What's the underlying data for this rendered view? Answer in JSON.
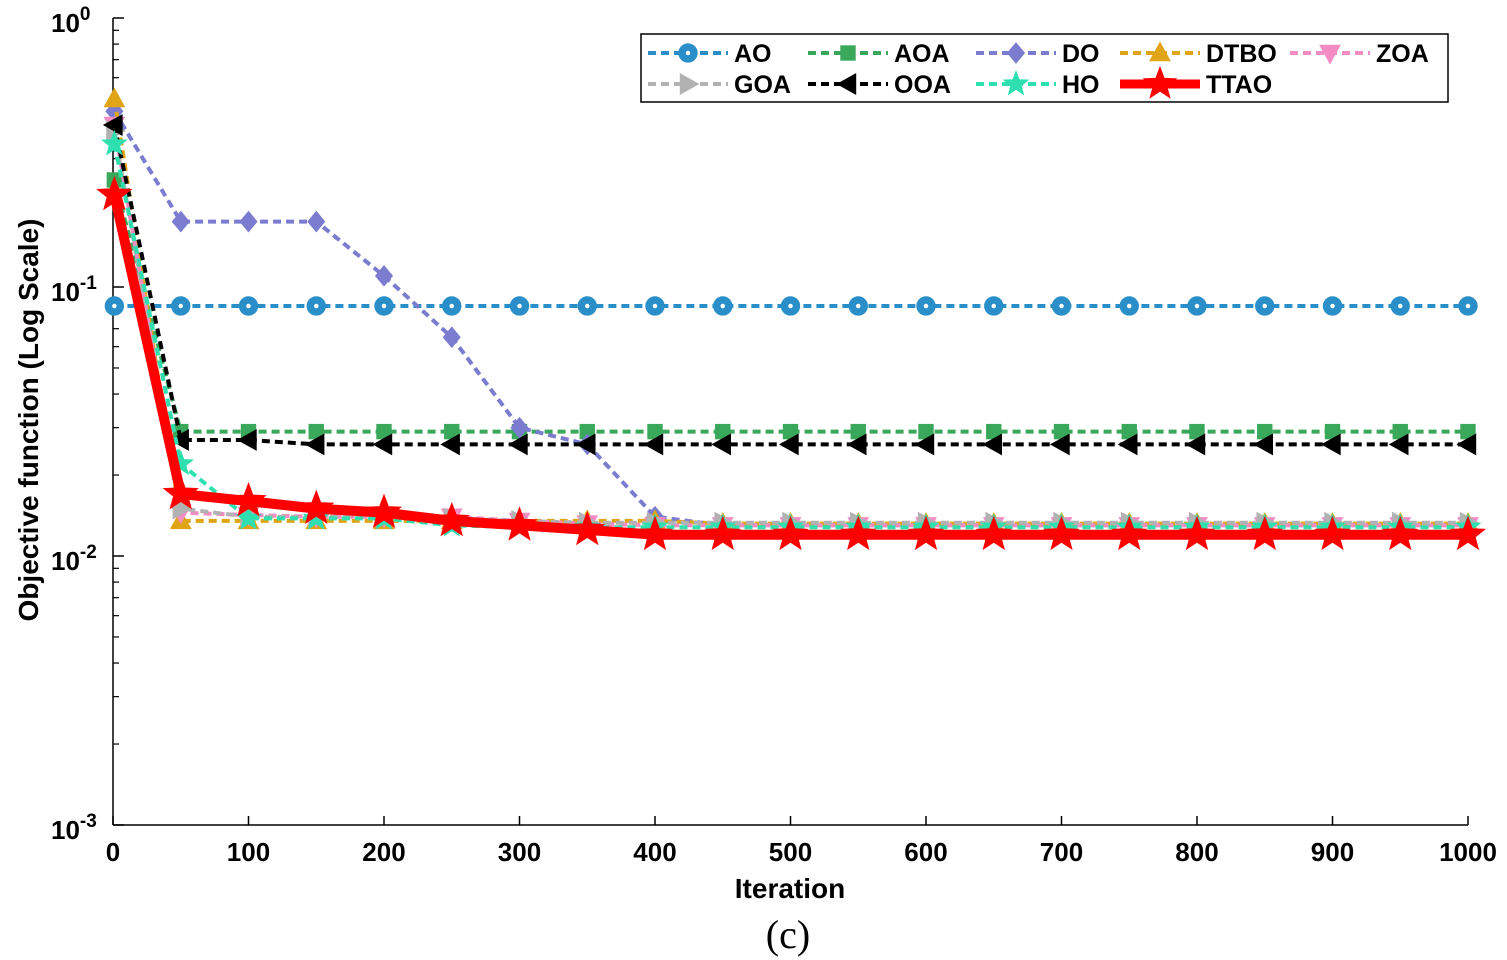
{
  "chart_data": {
    "type": "line",
    "title": "",
    "xlabel": "Iteration",
    "ylabel": "Objective function (Log Scale)",
    "caption": "(c)",
    "yscale": "log",
    "xlim": [
      0,
      1000
    ],
    "ylim": [
      0.001,
      1
    ],
    "xticks": [
      "0",
      "100",
      "200",
      "300",
      "400",
      "500",
      "600",
      "700",
      "800",
      "900",
      "1000"
    ],
    "yticks": [
      {
        "value": 1,
        "base": "10",
        "exp": "0"
      },
      {
        "value": 0.1,
        "base": "10",
        "exp": "-1"
      },
      {
        "value": 0.01,
        "base": "10",
        "exp": "-2"
      },
      {
        "value": 0.001,
        "base": "10",
        "exp": "-3"
      }
    ],
    "legend_position": "top-right",
    "x": [
      1,
      50,
      100,
      150,
      200,
      250,
      300,
      350,
      400,
      450,
      500,
      550,
      600,
      650,
      700,
      750,
      800,
      850,
      900,
      950,
      1000
    ],
    "series": [
      {
        "name": "AO",
        "color": "#2a8fc8",
        "marker": "circle",
        "dash": "dotted",
        "width": 4,
        "values": [
          0.085,
          0.085,
          0.085,
          0.085,
          0.085,
          0.085,
          0.085,
          0.085,
          0.085,
          0.085,
          0.085,
          0.085,
          0.085,
          0.085,
          0.085,
          0.085,
          0.085,
          0.085,
          0.085,
          0.085,
          0.085
        ]
      },
      {
        "name": "AOA",
        "color": "#3aa85a",
        "marker": "square",
        "dash": "dotted",
        "width": 4,
        "values": [
          0.25,
          0.029,
          0.029,
          0.029,
          0.029,
          0.029,
          0.029,
          0.029,
          0.029,
          0.029,
          0.029,
          0.029,
          0.029,
          0.029,
          0.029,
          0.029,
          0.029,
          0.029,
          0.029,
          0.029,
          0.029
        ]
      },
      {
        "name": "DO",
        "color": "#7b7ccf",
        "marker": "diamond",
        "dash": "dotted",
        "width": 4,
        "values": [
          0.45,
          0.175,
          0.175,
          0.175,
          0.11,
          0.065,
          0.03,
          0.026,
          0.014,
          0.013,
          0.013,
          0.013,
          0.013,
          0.013,
          0.013,
          0.013,
          0.013,
          0.013,
          0.013,
          0.013,
          0.013
        ]
      },
      {
        "name": "DTBO",
        "color": "#e0a516",
        "marker": "triangle-up",
        "dash": "dotted",
        "width": 4,
        "values": [
          0.5,
          0.0135,
          0.0135,
          0.0135,
          0.0135,
          0.0135,
          0.0135,
          0.0135,
          0.0135,
          0.0132,
          0.0132,
          0.0132,
          0.0132,
          0.0132,
          0.0132,
          0.0132,
          0.0132,
          0.0132,
          0.0132,
          0.0132,
          0.0132
        ]
      },
      {
        "name": "ZOA",
        "color": "#f48cc4",
        "marker": "triangle-down",
        "dash": "dotted",
        "width": 4,
        "values": [
          0.4,
          0.0145,
          0.0142,
          0.014,
          0.014,
          0.014,
          0.0135,
          0.0132,
          0.013,
          0.013,
          0.013,
          0.013,
          0.013,
          0.013,
          0.013,
          0.013,
          0.013,
          0.013,
          0.013,
          0.013,
          0.013
        ]
      },
      {
        "name": "GOA",
        "color": "#b2b2b2",
        "marker": "triangle-right",
        "dash": "dotted",
        "width": 4,
        "values": [
          0.38,
          0.015,
          0.014,
          0.014,
          0.014,
          0.0138,
          0.0135,
          0.0133,
          0.0133,
          0.0133,
          0.0133,
          0.0133,
          0.0133,
          0.0133,
          0.0133,
          0.0133,
          0.0133,
          0.0133,
          0.0133,
          0.0133,
          0.0133
        ]
      },
      {
        "name": "OOA",
        "color": "#000000",
        "marker": "triangle-left",
        "dash": "dotted",
        "width": 4,
        "values": [
          0.4,
          0.027,
          0.027,
          0.026,
          0.026,
          0.026,
          0.026,
          0.026,
          0.026,
          0.026,
          0.026,
          0.026,
          0.026,
          0.026,
          0.026,
          0.026,
          0.026,
          0.026,
          0.026,
          0.026,
          0.026
        ]
      },
      {
        "name": "HO",
        "color": "#2ee0b0",
        "marker": "star",
        "dash": "dotted",
        "width": 4,
        "values": [
          0.34,
          0.022,
          0.0138,
          0.0138,
          0.0138,
          0.013,
          0.0128,
          0.0128,
          0.0128,
          0.0128,
          0.0128,
          0.0128,
          0.0128,
          0.0128,
          0.0128,
          0.0128,
          0.0128,
          0.0128,
          0.0128,
          0.0128,
          0.0128
        ]
      },
      {
        "name": "TTAO",
        "color": "#ff0000",
        "marker": "star",
        "dash": "solid",
        "width": 10,
        "values": [
          0.22,
          0.017,
          0.016,
          0.015,
          0.0145,
          0.0135,
          0.013,
          0.0125,
          0.012,
          0.012,
          0.012,
          0.012,
          0.012,
          0.012,
          0.012,
          0.012,
          0.012,
          0.012,
          0.012,
          0.012,
          0.012
        ]
      }
    ]
  }
}
